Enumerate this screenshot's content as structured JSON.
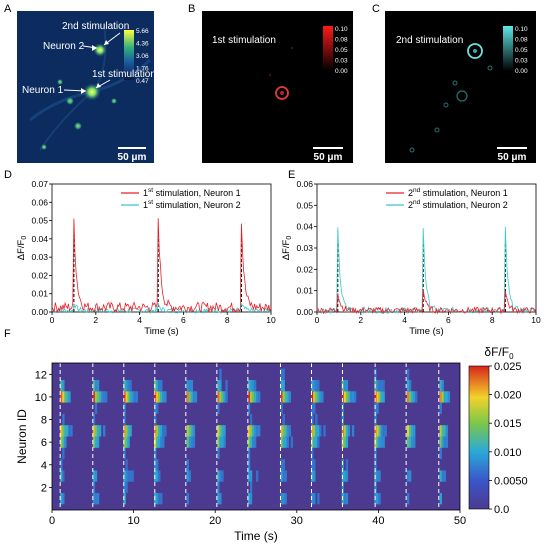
{
  "panels": {
    "A": {
      "letter": "A",
      "colorbar_ticks": [
        "5.66",
        "4.36",
        "3.06",
        "1.76",
        "0.47"
      ],
      "labels": {
        "neuron2": "Neuron 2",
        "neuron1": "Neuron 1",
        "stim2": "2nd stimulation",
        "stim1": "1st stimulation"
      },
      "scalebar": "50 μm"
    },
    "B": {
      "letter": "B",
      "title": "1st  stimulation",
      "colorbar_ticks": [
        "0.10",
        "0.08",
        "0.05",
        "0.03",
        "0.00"
      ],
      "scalebar": "50 μm"
    },
    "C": {
      "letter": "C",
      "title": "2nd stimulation",
      "colorbar_ticks": [
        "0.10",
        "0.08",
        "0.05",
        "0.03",
        "0.00"
      ],
      "scalebar": "50 μm"
    },
    "D": {
      "letter": "D"
    },
    "E": {
      "letter": "E"
    },
    "F": {
      "letter": "F"
    }
  },
  "colors": {
    "red": "#e8202a",
    "cyan": "#3cc8c8",
    "microscope_bg": "#0a2a5a",
    "red_ring": "#e23a3a",
    "cyan_ring": "#6fe0e0"
  },
  "chart_data": [
    {
      "id": "D",
      "type": "line",
      "ylabel": "ΔF/F0",
      "xlabel": "Time (s)",
      "xlim": [
        0,
        10
      ],
      "ylim": [
        0,
        0.07
      ],
      "xticks": [
        "0",
        "2",
        "4",
        "6",
        "8",
        "10"
      ],
      "yticks": [
        "0.00",
        "0.01",
        "0.02",
        "0.03",
        "0.04",
        "0.05",
        "0.06",
        "0.07"
      ],
      "legend": [
        {
          "pre": "1",
          "sup": "st",
          "post": " stimulation, Neuron 1",
          "color": "#e8202a"
        },
        {
          "pre": "1",
          "sup": "st",
          "post": " stimulation, Neuron 2",
          "color": "#3cc8c8"
        }
      ],
      "stim_times": [
        1.0,
        4.85,
        8.65
      ],
      "series": [
        {
          "name": "1st stimulation, Neuron 1",
          "peaks": [
            [
              1.0,
              0.048
            ],
            [
              4.85,
              0.049
            ],
            [
              8.65,
              0.048
            ]
          ],
          "baseline": 0.004
        },
        {
          "name": "1st stimulation, Neuron 2",
          "peaks": [
            [
              1.0,
              0.004
            ],
            [
              4.85,
              0.003
            ],
            [
              8.65,
              0.003
            ]
          ],
          "baseline": 0.002
        }
      ]
    },
    {
      "id": "E",
      "type": "line",
      "ylabel": "ΔF/F0",
      "xlabel": "Time (s)",
      "xlim": [
        0,
        10
      ],
      "ylim": [
        0,
        0.06
      ],
      "xticks": [
        "0",
        "2",
        "4",
        "6",
        "8",
        "10"
      ],
      "yticks": [
        "0.00",
        "0.01",
        "0.02",
        "0.03",
        "0.04",
        "0.05",
        "0.06"
      ],
      "legend": [
        {
          "pre": "2",
          "sup": "nd",
          "post": " stimulation, Neuron 1",
          "color": "#e8202a"
        },
        {
          "pre": "2",
          "sup": "nd",
          "post": " stimulation, Neuron 2",
          "color": "#3cc8c8"
        }
      ],
      "stim_times": [
        0.95,
        4.85,
        8.6
      ],
      "series": [
        {
          "name": "2nd stimulation, Neuron 1",
          "peaks": [
            [
              0.95,
              0.009
            ],
            [
              4.85,
              0.01
            ],
            [
              8.6,
              0.01
            ]
          ],
          "baseline": 0.002
        },
        {
          "name": "2nd stimulation, Neuron 2",
          "peaks": [
            [
              0.95,
              0.038
            ],
            [
              4.85,
              0.039
            ],
            [
              8.6,
              0.038
            ]
          ],
          "baseline": 0.002
        }
      ]
    },
    {
      "id": "F",
      "type": "heatmap",
      "xlabel": "Time (s)",
      "ylabel": "Neuron ID",
      "xlim": [
        0,
        50
      ],
      "ylim": [
        0,
        13
      ],
      "xticks": [
        "0",
        "10",
        "20",
        "30",
        "40",
        "50"
      ],
      "yticks": [
        "2",
        "4",
        "6",
        "8",
        "10",
        "12"
      ],
      "colorbar_title": "δF/F0",
      "colorbar_ticks": [
        "0.025",
        "0.020",
        "0.015",
        "0.010",
        "0.0050",
        "0.0"
      ],
      "clim": [
        0,
        0.025
      ],
      "stim_times": [
        1.0,
        5.0,
        8.8,
        12.6,
        16.4,
        20.2,
        24.0,
        28.0,
        31.8,
        35.6,
        39.6,
        43.4,
        47.4
      ],
      "neurons": 12
    }
  ]
}
